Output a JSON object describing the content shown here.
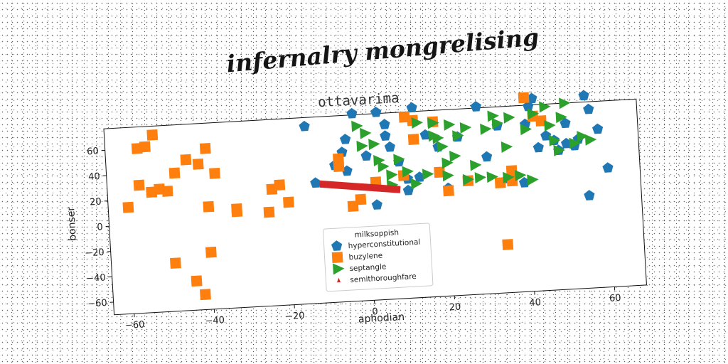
{
  "page_title": "infernalry mongrelising",
  "colors": {
    "hyperconstitutional": "#1f77b4",
    "buzylene": "#ff7f0e",
    "septangle": "#2ca02c",
    "semithoroughfare": "#d62728"
  },
  "chart_data": {
    "type": "scatter",
    "title": "ottavarima",
    "xlabel": "aphodian",
    "ylabel": "bonser",
    "xlim": [
      -65,
      68
    ],
    "ylim": [
      -70,
      77
    ],
    "xticks": [
      "−60",
      "−40",
      "−20",
      "0",
      "20",
      "40",
      "60"
    ],
    "xtick_values": [
      -60,
      -40,
      -20,
      0,
      20,
      40,
      60
    ],
    "yticks": [
      "60",
      "40",
      "20",
      "0",
      "−20",
      "−40",
      "−60"
    ],
    "ytick_values": [
      60,
      40,
      20,
      0,
      -20,
      -40,
      -60
    ],
    "grid": false,
    "legend": {
      "title": "milksoppish",
      "placement": "lower center",
      "entries": [
        "hyperconstitutional",
        "buzylene",
        "septangle",
        "semithoroughfare"
      ]
    },
    "series": [
      {
        "name": "hyperconstitutional",
        "marker": "pentagon",
        "color": "#1f77b4",
        "points": [
          [
            -15,
            70
          ],
          [
            -13,
            25
          ],
          [
            -8,
            38
          ],
          [
            -6,
            48
          ],
          [
            -5,
            58
          ],
          [
            -3,
            78
          ],
          [
            0,
            44
          ],
          [
            -5,
            33
          ],
          [
            3,
            78
          ],
          [
            2,
            5
          ],
          [
            5,
            59
          ],
          [
            5,
            68
          ],
          [
            6,
            50
          ],
          [
            8,
            38
          ],
          [
            10,
            15
          ],
          [
            10,
            24
          ],
          [
            12,
            80
          ],
          [
            13,
            25
          ],
          [
            15,
            58
          ],
          [
            18,
            48
          ],
          [
            20,
            15
          ],
          [
            23,
            55
          ],
          [
            28,
            78
          ],
          [
            30,
            38
          ],
          [
            33,
            62
          ],
          [
            35,
            20
          ],
          [
            39,
            16
          ],
          [
            40,
            62
          ],
          [
            41,
            76
          ],
          [
            42,
            82
          ],
          [
            43,
            43
          ],
          [
            45,
            52
          ],
          [
            47,
            48
          ],
          [
            48,
            40
          ],
          [
            50,
            45
          ],
          [
            50,
            61
          ],
          [
            52,
            43
          ],
          [
            53,
            48
          ],
          [
            55,
            82
          ],
          [
            56,
            71
          ],
          [
            58,
            55
          ],
          [
            60,
            24
          ],
          [
            55,
            3
          ]
        ]
      },
      {
        "name": "buzylene",
        "marker": "square",
        "color": "#ff7f0e",
        "points": [
          [
            -60,
            14
          ],
          [
            -57,
            31
          ],
          [
            -57,
            60
          ],
          [
            -55,
            61
          ],
          [
            -54,
            25
          ],
          [
            -53,
            70
          ],
          [
            -52,
            27
          ],
          [
            -50,
            25
          ],
          [
            -49,
            -32
          ],
          [
            -48,
            39
          ],
          [
            -45,
            49
          ],
          [
            -44,
            -47
          ],
          [
            -42,
            45
          ],
          [
            -42,
            -58
          ],
          [
            -40,
            11
          ],
          [
            -40,
            -25
          ],
          [
            -40,
            57
          ],
          [
            -38,
            37
          ],
          [
            -33,
            8
          ],
          [
            -33,
            6
          ],
          [
            -25,
            4
          ],
          [
            -24,
            22
          ],
          [
            -22,
            25
          ],
          [
            -20,
            11
          ],
          [
            -7,
            37
          ],
          [
            -7,
            43
          ],
          [
            -4,
            5
          ],
          [
            -2,
            10
          ],
          [
            2,
            23
          ],
          [
            9,
            27
          ],
          [
            10,
            73
          ],
          [
            12,
            55
          ],
          [
            12,
            70
          ],
          [
            17,
            68
          ],
          [
            18,
            28
          ],
          [
            20,
            13
          ],
          [
            25,
            20
          ],
          [
            33,
            17
          ],
          [
            36,
            18
          ],
          [
            34,
            -32
          ],
          [
            36,
            26
          ],
          [
            40,
            83
          ],
          [
            42,
            68
          ],
          [
            44,
            64
          ]
        ]
      },
      {
        "name": "septangle",
        "marker": "triangle-right",
        "color": "#2ca02c",
        "points": [
          [
            -2,
            68
          ],
          [
            -1,
            52
          ],
          [
            0,
            62
          ],
          [
            2,
            53
          ],
          [
            3,
            40
          ],
          [
            4,
            35
          ],
          [
            6,
            28
          ],
          [
            6,
            20
          ],
          [
            8,
            40
          ],
          [
            10,
            30
          ],
          [
            12,
            20
          ],
          [
            13,
            68
          ],
          [
            15,
            27
          ],
          [
            17,
            67
          ],
          [
            17,
            57
          ],
          [
            18,
            55
          ],
          [
            19,
            48
          ],
          [
            20,
            35
          ],
          [
            20,
            25
          ],
          [
            21,
            65
          ],
          [
            22,
            40
          ],
          [
            23,
            56
          ],
          [
            25,
            62
          ],
          [
            25,
            21
          ],
          [
            27,
            32
          ],
          [
            28,
            22
          ],
          [
            30,
            60
          ],
          [
            31,
            22
          ],
          [
            32,
            70
          ],
          [
            33,
            64
          ],
          [
            35,
            45
          ],
          [
            35,
            21
          ],
          [
            36,
            68
          ],
          [
            38,
            22
          ],
          [
            40,
            58
          ],
          [
            41,
            18
          ],
          [
            42,
            70
          ],
          [
            45,
            75
          ],
          [
            46,
            60
          ],
          [
            47,
            48
          ],
          [
            48,
            40
          ],
          [
            49,
            66
          ],
          [
            50,
            77
          ],
          [
            52,
            45
          ],
          [
            54,
            50
          ],
          [
            56,
            47
          ]
        ]
      },
      {
        "name": "semithoroughfare",
        "marker": "line",
        "color": "#d62728",
        "points": [
          [
            -12,
            24
          ],
          [
            8,
            16
          ]
        ]
      }
    ]
  }
}
